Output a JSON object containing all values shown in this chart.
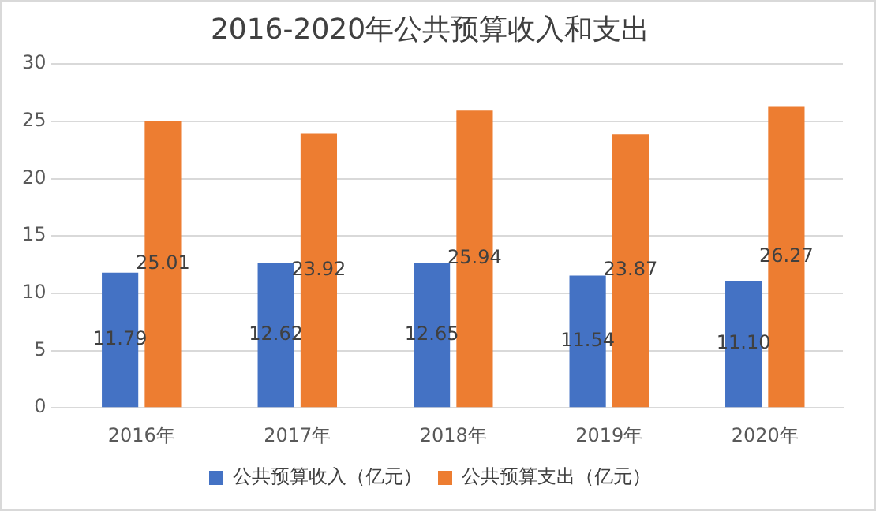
{
  "chart_data": {
    "type": "bar",
    "title": "2016-2020年公共预算收入和支出",
    "categories": [
      "2016年",
      "2017年",
      "2018年",
      "2019年",
      "2020年"
    ],
    "series": [
      {
        "name": "公共预算收入（亿元）",
        "color": "#4472c4",
        "values": [
          11.79,
          12.62,
          12.65,
          11.54,
          11.1
        ],
        "value_labels": [
          "11.79",
          "12.62",
          "12.65",
          "11.54",
          "11.10"
        ]
      },
      {
        "name": "公共预算支出（亿元）",
        "color": "#ed7d31",
        "values": [
          25.01,
          23.92,
          25.94,
          23.87,
          26.27
        ],
        "value_labels": [
          "25.01",
          "23.92",
          "25.94",
          "23.87",
          "26.27"
        ]
      }
    ],
    "ylim": [
      0,
      30
    ],
    "yticks": [
      0,
      5,
      10,
      15,
      20,
      25,
      30
    ],
    "grid": "y",
    "legend": "bottom"
  }
}
